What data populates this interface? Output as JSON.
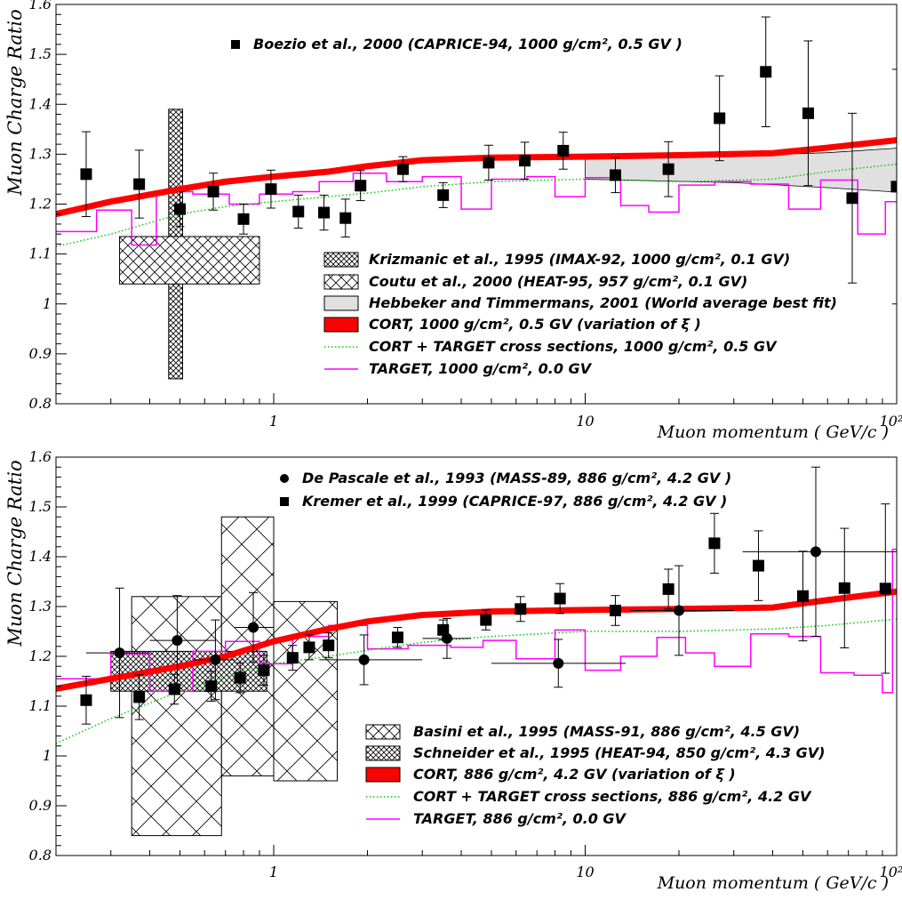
{
  "colors": {
    "cort": "#ff0000",
    "target": "#ff00ff",
    "cort_target": "#00cc00",
    "band": "#e0e0e0"
  },
  "chart_data": [
    {
      "type": "scatter",
      "panel": "top",
      "xlabel": "Muon momentum  ( GeV/c )",
      "ylabel": "Muon Charge Ratio",
      "xlim": [
        0.2,
        100
      ],
      "ylim": [
        0.8,
        1.6
      ],
      "xscale": "log",
      "xticks": [
        "1",
        "10",
        "10²"
      ],
      "yticks": [
        "0.8",
        "0.9",
        "1",
        "1.1",
        "1.2",
        "1.3",
        "1.4",
        "1.5",
        "1.6"
      ],
      "legend_top": "Boezio et al., 2000 (CAPRICE-94, 1000 g/cm², 0.5 GV )",
      "legend": [
        {
          "label": "Krizmanic et al., 1995 (IMAX-92, 1000 g/cm², 0.1 GV)",
          "kind": "dense"
        },
        {
          "label": "Coutu et al., 2000 (HEAT-95, 957 g/cm², 0.1 GV)",
          "kind": "cross"
        },
        {
          "label": "Hebbeker and Timmermans, 2001 (World average best fit)",
          "kind": "band"
        },
        {
          "label": "CORT, 1000 g/cm², 0.5 GV (variation of ξ )",
          "kind": "cort"
        },
        {
          "label": "CORT + TARGET cross sections, 1000 g/cm², 0.5 GV",
          "kind": "ct"
        },
        {
          "label": "TARGET, 1000 g/cm², 0.0 GV",
          "kind": "target"
        }
      ],
      "series": [
        {
          "name": "Boezio et al., 2000 (CAPRICE-94, 1000 g/cm², 0.5 GV )",
          "marker": "square",
          "points": [
            [
              0.25,
              1.26,
              0.085
            ],
            [
              0.37,
              1.24,
              0.068
            ],
            [
              0.5,
              1.19,
              0.035
            ],
            [
              0.64,
              1.225,
              0.037
            ],
            [
              0.8,
              1.17,
              0.03
            ],
            [
              0.98,
              1.23,
              0.038
            ],
            [
              1.2,
              1.185,
              0.033
            ],
            [
              1.45,
              1.183,
              0.035
            ],
            [
              1.7,
              1.172,
              0.038
            ],
            [
              1.9,
              1.237,
              0.03
            ],
            [
              2.6,
              1.27,
              0.025
            ],
            [
              3.5,
              1.218,
              0.025
            ],
            [
              4.9,
              1.283,
              0.035
            ],
            [
              6.4,
              1.287,
              0.037
            ],
            [
              8.5,
              1.307,
              0.037
            ],
            [
              12.5,
              1.258,
              0.035
            ],
            [
              18.5,
              1.27,
              0.055
            ],
            [
              27,
              1.372,
              0.085
            ],
            [
              38,
              1.465,
              0.11
            ],
            [
              52,
              1.382,
              0.145
            ],
            [
              72,
              1.212,
              0.17
            ],
            [
              100,
              1.235,
              0.235
            ]
          ]
        }
      ],
      "boxes": [
        {
          "name": "Krizmanic et al., 1995 (IMAX-92, 1000 g/cm², 0.1 GV)",
          "kind": "dense",
          "x": [
            0.46,
            0.51
          ],
          "y": [
            0.85,
            1.39
          ]
        },
        {
          "name": "Coutu et al., 2000 (HEAT-95, 957 g/cm², 0.1 GV)",
          "kind": "cross",
          "x": [
            0.32,
            0.9
          ],
          "y": [
            1.04,
            1.135
          ]
        }
      ],
      "band": {
        "x": [
          10,
          30,
          60,
          100
        ],
        "low": [
          1.25,
          1.243,
          1.233,
          1.224
        ],
        "high": [
          1.29,
          1.297,
          1.303,
          1.312
        ]
      },
      "cort": [
        [
          0.2,
          1.18
        ],
        [
          0.3,
          1.205
        ],
        [
          0.5,
          1.23
        ],
        [
          0.7,
          1.245
        ],
        [
          1,
          1.255
        ],
        [
          1.5,
          1.265
        ],
        [
          2,
          1.276
        ],
        [
          3,
          1.288
        ],
        [
          5,
          1.293
        ],
        [
          10,
          1.295
        ],
        [
          20,
          1.298
        ],
        [
          40,
          1.302
        ],
        [
          60,
          1.313
        ],
        [
          100,
          1.328
        ]
      ],
      "cort_target": [
        [
          0.2,
          1.115
        ],
        [
          0.3,
          1.14
        ],
        [
          0.5,
          1.18
        ],
        [
          0.7,
          1.195
        ],
        [
          1,
          1.205
        ],
        [
          1.5,
          1.215
        ],
        [
          2,
          1.222
        ],
        [
          3,
          1.235
        ],
        [
          5,
          1.245
        ],
        [
          10,
          1.25
        ],
        [
          20,
          1.245
        ],
        [
          40,
          1.25
        ],
        [
          60,
          1.265
        ],
        [
          100,
          1.28
        ]
      ],
      "target": [
        [
          0.2,
          1.145
        ],
        [
          0.27,
          1.145
        ],
        [
          0.27,
          1.188
        ],
        [
          0.35,
          1.188
        ],
        [
          0.35,
          1.118
        ],
        [
          0.42,
          1.118
        ],
        [
          0.42,
          1.225
        ],
        [
          0.55,
          1.225
        ],
        [
          0.55,
          1.22
        ],
        [
          0.72,
          1.22
        ],
        [
          0.72,
          1.2
        ],
        [
          0.9,
          1.2
        ],
        [
          0.9,
          1.22
        ],
        [
          1.15,
          1.22
        ],
        [
          1.15,
          1.225
        ],
        [
          1.4,
          1.225
        ],
        [
          1.4,
          1.245
        ],
        [
          1.8,
          1.245
        ],
        [
          1.8,
          1.262
        ],
        [
          2.3,
          1.262
        ],
        [
          2.3,
          1.245
        ],
        [
          3,
          1.245
        ],
        [
          3,
          1.255
        ],
        [
          4,
          1.255
        ],
        [
          4,
          1.19
        ],
        [
          5,
          1.19
        ],
        [
          5,
          1.25
        ],
        [
          6.5,
          1.25
        ],
        [
          6.5,
          1.255
        ],
        [
          8,
          1.255
        ],
        [
          8,
          1.215
        ],
        [
          10,
          1.215
        ],
        [
          10,
          1.253
        ],
        [
          13,
          1.253
        ],
        [
          13,
          1.197
        ],
        [
          16,
          1.197
        ],
        [
          16,
          1.184
        ],
        [
          20,
          1.184
        ],
        [
          20,
          1.238
        ],
        [
          26,
          1.238
        ],
        [
          26,
          1.245
        ],
        [
          34,
          1.245
        ],
        [
          34,
          1.24
        ],
        [
          45,
          1.24
        ],
        [
          45,
          1.19
        ],
        [
          57,
          1.19
        ],
        [
          57,
          1.248
        ],
        [
          75,
          1.248
        ],
        [
          75,
          1.14
        ],
        [
          92,
          1.14
        ],
        [
          92,
          1.205
        ],
        [
          100,
          1.205
        ]
      ]
    },
    {
      "type": "scatter",
      "panel": "bottom",
      "xlabel": "Muon momentum  ( GeV/c )",
      "ylabel": "Muon Charge Ratio",
      "xlim": [
        0.2,
        100
      ],
      "ylim": [
        0.8,
        1.6
      ],
      "xscale": "log",
      "xticks": [
        "1",
        "10",
        "10²"
      ],
      "yticks": [
        "0.8",
        "0.9",
        "1",
        "1.1",
        "1.2",
        "1.3",
        "1.4",
        "1.5",
        "1.6"
      ],
      "legend_top": [
        "De Pascale et al., 1993 (MASS-89, 886 g/cm², 4.2 GV )",
        "Kremer et al., 1999 (CAPRICE-97, 886 g/cm², 4.2 GV )"
      ],
      "legend": [
        {
          "label": "Basini et al., 1995 (MASS-91, 886 g/cm², 4.5 GV)",
          "kind": "hatch"
        },
        {
          "label": "Schneider et al., 1995 (HEAT-94, 850 g/cm², 4.3 GV)",
          "kind": "dense"
        },
        {
          "label": "CORT, 886 g/cm², 4.2 GV (variation of ξ )",
          "kind": "cort"
        },
        {
          "label": "CORT + TARGET cross sections, 886 g/cm², 4.2 GV",
          "kind": "ct"
        },
        {
          "label": "TARGET, 886 g/cm², 0.0 GV",
          "kind": "target"
        }
      ],
      "series": [
        {
          "name": "De Pascale et al., 1993 (MASS-89, 886 g/cm², 4.2 GV )",
          "marker": "circle",
          "points": [
            [
              0.32,
              1.207,
              0.13,
              0.25,
              0.4
            ],
            [
              0.49,
              1.232,
              0.09,
              0.4,
              0.65
            ],
            [
              0.65,
              1.193,
              0.08,
              0.55,
              0.75
            ],
            [
              0.86,
              1.258,
              0.07,
              0.75,
              1.0
            ],
            [
              1.95,
              1.193,
              0.05,
              1.4,
              3.0
            ],
            [
              3.6,
              1.236,
              0.04,
              3.0,
              4.3
            ],
            [
              8.2,
              1.186,
              0.048,
              5.0,
              13.5
            ],
            [
              20,
              1.292,
              0.09,
              14,
              30
            ],
            [
              55,
              1.41,
              0.17,
              32,
              100
            ]
          ]
        },
        {
          "name": "Kremer et al., 1999 (CAPRICE-97, 886 g/cm², 4.2 GV )",
          "marker": "square",
          "points": [
            [
              0.25,
              1.112,
              0.048
            ],
            [
              0.37,
              1.118,
              0.045
            ],
            [
              0.48,
              1.134,
              0.03
            ],
            [
              0.63,
              1.14,
              0.03
            ],
            [
              0.78,
              1.157,
              0.03
            ],
            [
              0.93,
              1.172,
              0.03
            ],
            [
              1.15,
              1.197,
              0.025
            ],
            [
              1.3,
              1.218,
              0.025
            ],
            [
              1.5,
              1.222,
              0.025
            ],
            [
              2.5,
              1.238,
              0.02
            ],
            [
              3.5,
              1.253,
              0.02
            ],
            [
              4.8,
              1.273,
              0.02
            ],
            [
              6.2,
              1.295,
              0.025
            ],
            [
              8.3,
              1.316,
              0.03
            ],
            [
              12.5,
              1.292,
              0.03
            ],
            [
              18.5,
              1.335,
              0.04
            ],
            [
              26,
              1.427,
              0.06
            ],
            [
              36,
              1.382,
              0.07
            ],
            [
              50,
              1.321,
              0.09
            ],
            [
              68,
              1.337,
              0.12
            ],
            [
              92,
              1.336,
              0.17
            ]
          ]
        }
      ],
      "boxes": [
        {
          "name": "Basini et al., 1995 (MASS-91, 886 g/cm², 4.5 GV)",
          "kind": "hatch",
          "x": [
            0.35,
            0.68
          ],
          "y": [
            0.84,
            1.32
          ]
        },
        {
          "name": "Basini et al., 1995 (MASS-91, 886 g/cm², 4.5 GV)",
          "kind": "hatch",
          "x": [
            0.68,
            1.0
          ],
          "y": [
            0.96,
            1.48
          ]
        },
        {
          "name": "Basini et al., 1995 (MASS-91, 886 g/cm², 4.5 GV)",
          "kind": "hatch",
          "x": [
            1.0,
            1.6
          ],
          "y": [
            0.95,
            1.31
          ]
        },
        {
          "name": "Schneider et al., 1995 (HEAT-94, 850 g/cm², 4.3 GV)",
          "kind": "dense",
          "x": [
            0.3,
            0.95
          ],
          "y": [
            1.13,
            1.21
          ]
        }
      ],
      "cort": [
        [
          0.2,
          1.135
        ],
        [
          0.3,
          1.155
        ],
        [
          0.5,
          1.18
        ],
        [
          0.7,
          1.2
        ],
        [
          1,
          1.23
        ],
        [
          1.5,
          1.255
        ],
        [
          2,
          1.27
        ],
        [
          3,
          1.283
        ],
        [
          5,
          1.29
        ],
        [
          10,
          1.293
        ],
        [
          20,
          1.295
        ],
        [
          40,
          1.298
        ],
        [
          60,
          1.313
        ],
        [
          100,
          1.33
        ]
      ],
      "cort_target": [
        [
          0.2,
          1.025
        ],
        [
          0.3,
          1.075
        ],
        [
          0.5,
          1.13
        ],
        [
          0.7,
          1.16
        ],
        [
          1,
          1.185
        ],
        [
          1.5,
          1.2
        ],
        [
          2,
          1.212
        ],
        [
          3,
          1.228
        ],
        [
          5,
          1.24
        ],
        [
          10,
          1.25
        ],
        [
          20,
          1.25
        ],
        [
          40,
          1.255
        ],
        [
          60,
          1.262
        ],
        [
          100,
          1.275
        ]
      ],
      "target": [
        [
          0.2,
          1.155
        ],
        [
          0.3,
          1.155
        ],
        [
          0.3,
          1.205
        ],
        [
          0.4,
          1.205
        ],
        [
          0.4,
          1.13
        ],
        [
          0.55,
          1.13
        ],
        [
          0.55,
          1.21
        ],
        [
          0.7,
          1.21
        ],
        [
          0.7,
          1.23
        ],
        [
          0.9,
          1.23
        ],
        [
          0.9,
          1.185
        ],
        [
          1.15,
          1.185
        ],
        [
          1.15,
          1.24
        ],
        [
          1.5,
          1.24
        ],
        [
          1.5,
          1.262
        ],
        [
          2,
          1.262
        ],
        [
          2,
          1.215
        ],
        [
          2.7,
          1.215
        ],
        [
          2.7,
          1.222
        ],
        [
          3.7,
          1.222
        ],
        [
          3.7,
          1.218
        ],
        [
          4.7,
          1.218
        ],
        [
          4.7,
          1.232
        ],
        [
          6,
          1.232
        ],
        [
          6,
          1.195
        ],
        [
          8,
          1.195
        ],
        [
          8,
          1.253
        ],
        [
          10,
          1.253
        ],
        [
          10,
          1.172
        ],
        [
          13,
          1.172
        ],
        [
          13,
          1.2
        ],
        [
          17,
          1.2
        ],
        [
          17,
          1.238
        ],
        [
          21,
          1.238
        ],
        [
          21,
          1.207
        ],
        [
          26,
          1.207
        ],
        [
          26,
          1.18
        ],
        [
          34,
          1.18
        ],
        [
          34,
          1.245
        ],
        [
          45,
          1.245
        ],
        [
          45,
          1.24
        ],
        [
          57,
          1.24
        ],
        [
          57,
          1.167
        ],
        [
          73,
          1.167
        ],
        [
          73,
          1.162
        ],
        [
          90,
          1.162
        ],
        [
          90,
          1.127
        ],
        [
          97,
          1.127
        ],
        [
          97,
          1.415
        ],
        [
          100,
          1.415
        ]
      ]
    }
  ]
}
